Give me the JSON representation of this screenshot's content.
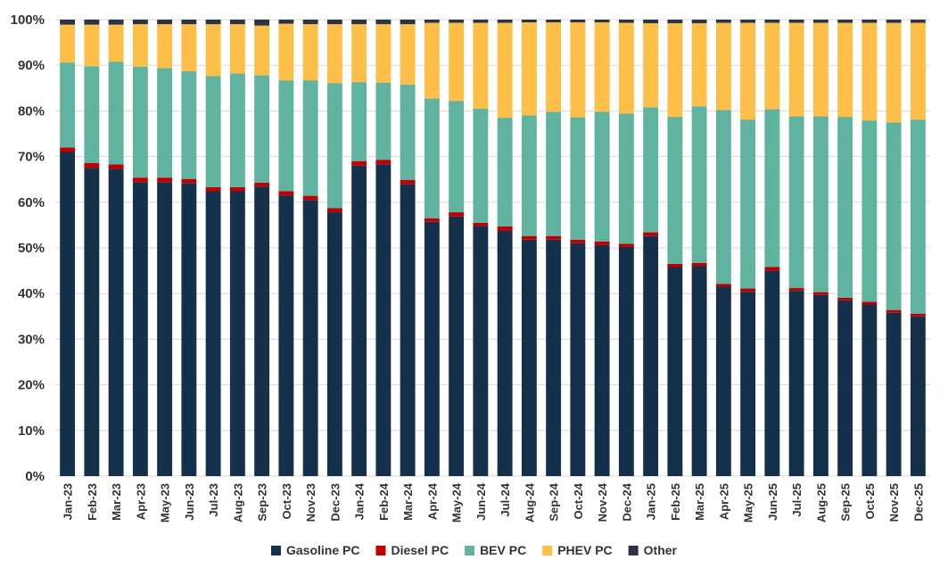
{
  "chart_data": {
    "type": "bar",
    "stacked": true,
    "normalized": true,
    "title": "",
    "xlabel": "",
    "ylabel": "",
    "ylim": [
      0,
      100
    ],
    "yticks": [
      "0%",
      "10%",
      "20%",
      "30%",
      "40%",
      "50%",
      "60%",
      "70%",
      "80%",
      "90%",
      "100%"
    ],
    "grid": true,
    "legend_position": "bottom",
    "categories": [
      "Jan-23",
      "Feb-23",
      "Mar-23",
      "Apr-23",
      "May-23",
      "Jun-23",
      "Jul-23",
      "Aug-23",
      "Sep-23",
      "Oct-23",
      "Nov-23",
      "Dec-23",
      "Jan-24",
      "Feb-24",
      "Mar-24",
      "Apr-24",
      "May-24",
      "Jun-24",
      "Jul-24",
      "Aug-24",
      "Sep-24",
      "Oct-24",
      "Nov-24",
      "Dec-24",
      "Jan-25",
      "Feb-25",
      "Mar-25",
      "Apr-25",
      "May-25",
      "Jun-25",
      "Jul-25",
      "Aug-25",
      "Sep-25",
      "Oct-25",
      "Nov-25",
      "Dec-25"
    ],
    "series": [
      {
        "name": "Gasoline PC",
        "color": "#14304b",
        "values": [
          71.0,
          67.5,
          67.3,
          64.4,
          64.4,
          64.2,
          62.4,
          62.4,
          63.4,
          61.5,
          60.5,
          57.8,
          68.0,
          68.3,
          64.0,
          55.7,
          56.9,
          54.8,
          53.8,
          51.8,
          51.8,
          51.0,
          50.6,
          50.2,
          52.6,
          45.8,
          46.0,
          41.5,
          40.4,
          45.0,
          40.6,
          39.7,
          38.5,
          37.6,
          35.8,
          35.0
        ]
      },
      {
        "name": "Diesel PC",
        "color": "#c00000",
        "values": [
          1.0,
          1.1,
          1.0,
          1.0,
          1.0,
          0.9,
          0.9,
          0.9,
          0.9,
          0.9,
          0.9,
          0.9,
          1.0,
          1.0,
          0.9,
          0.8,
          0.9,
          0.7,
          0.9,
          0.8,
          0.8,
          0.8,
          0.8,
          0.7,
          0.8,
          0.7,
          0.7,
          0.6,
          0.7,
          0.8,
          0.6,
          0.6,
          0.6,
          0.6,
          0.6,
          0.6
        ]
      },
      {
        "name": "BEV PC",
        "color": "#5fb39f",
        "values": [
          18.6,
          21.2,
          22.5,
          24.3,
          24.0,
          23.6,
          24.3,
          24.9,
          23.5,
          24.3,
          25.3,
          27.4,
          17.3,
          16.9,
          20.9,
          26.2,
          24.4,
          25.0,
          23.8,
          26.4,
          27.2,
          26.8,
          28.4,
          28.5,
          27.4,
          32.2,
          34.3,
          38.1,
          37.0,
          34.6,
          37.6,
          38.5,
          39.6,
          39.7,
          41.1,
          42.5
        ]
      },
      {
        "name": "PHEV PC",
        "color": "#fdbf47",
        "values": [
          8.3,
          9.1,
          8.1,
          9.3,
          9.6,
          10.3,
          11.4,
          10.8,
          10.9,
          12.4,
          12.3,
          12.9,
          12.7,
          12.8,
          13.2,
          16.6,
          17.1,
          18.8,
          20.8,
          20.4,
          19.6,
          20.8,
          19.6,
          19.9,
          18.4,
          20.5,
          18.2,
          19.1,
          21.2,
          18.9,
          20.5,
          20.5,
          20.6,
          21.4,
          21.8,
          21.2
        ]
      },
      {
        "name": "Other",
        "color": "#2b3440",
        "values": [
          1.1,
          1.1,
          1.1,
          1.0,
          1.0,
          1.0,
          1.0,
          1.0,
          1.3,
          0.9,
          1.0,
          1.0,
          1.0,
          1.0,
          1.0,
          0.7,
          0.7,
          0.7,
          0.7,
          0.6,
          0.6,
          0.6,
          0.6,
          0.7,
          0.8,
          0.8,
          0.8,
          0.7,
          0.7,
          0.7,
          0.7,
          0.7,
          0.7,
          0.7,
          0.7,
          0.7
        ]
      }
    ]
  }
}
